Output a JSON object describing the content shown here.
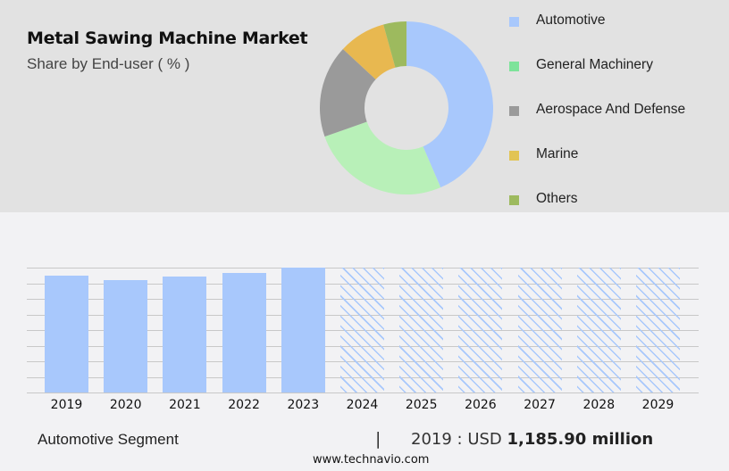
{
  "header": {
    "title": "Metal Sawing Machine Market",
    "subtitle": "Share by End-user ( % )"
  },
  "legend": {
    "items": [
      {
        "label": "Automotive",
        "color": "#a8c8fc"
      },
      {
        "label": "General Machinery",
        "color": "#7de39a"
      },
      {
        "label": "Aerospace And Defense",
        "color": "#9a9a9a"
      },
      {
        "label": "Marine",
        "color": "#e8c04e"
      },
      {
        "label": "Others",
        "color": "#9dba5e"
      }
    ]
  },
  "footer": {
    "segment": "Automotive Segment",
    "separator": "|",
    "year_prefix": "2019 : USD ",
    "value": "1,185.90 million",
    "source": "www.technavio.com"
  },
  "chart_data": [
    {
      "type": "pie",
      "title": "Metal Sawing Machine Market",
      "subtitle": "Share by End-user ( % )",
      "donut": true,
      "categories": [
        "Automotive",
        "General Machinery",
        "Aerospace And Defense",
        "Marine",
        "Others"
      ],
      "values": [
        43.6,
        26.1,
        17.3,
        8.8,
        4.3
      ],
      "colors": [
        "#a8c8fc",
        "#b8f0b8",
        "#9a9a9a",
        "#e8b850",
        "#9dba5e"
      ],
      "legend_position": "right"
    },
    {
      "type": "bar",
      "title": "Automotive Segment",
      "categories": [
        "2019",
        "2020",
        "2021",
        "2022",
        "2023",
        "2024",
        "2025",
        "2026",
        "2027",
        "2028",
        "2029"
      ],
      "values": [
        1185.9,
        1142,
        1176,
        1211,
        1265,
        null,
        null,
        null,
        null,
        null,
        null
      ],
      "forecast": [
        false,
        false,
        false,
        false,
        false,
        true,
        true,
        true,
        true,
        true,
        true
      ],
      "annotation": "2019 : USD 1,185.90 million",
      "xlabel": "",
      "ylabel": "",
      "grid": true,
      "ylim": [
        0,
        1265
      ]
    }
  ]
}
